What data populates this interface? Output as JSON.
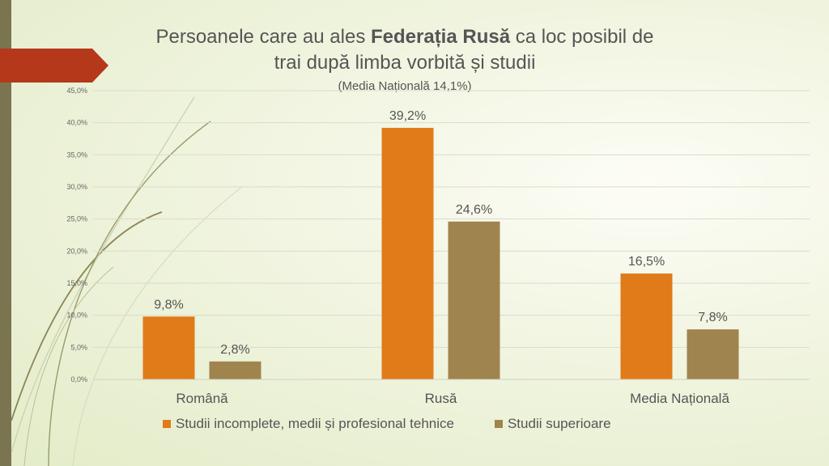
{
  "title": {
    "prefix": "Persoanele care au ales ",
    "bold": "Federația Rusă",
    "suffix": " ca loc posibil de",
    "line2": "trai după limba vorbită și studii",
    "line3": "(Media Națională 14,1%)"
  },
  "colors": {
    "series1": "#e07b1a",
    "series2": "#a0844e",
    "banner": "#b5381b",
    "strip": "#7a7550",
    "text": "#555555",
    "grid": "#d9dccb"
  },
  "chart_data": {
    "type": "bar",
    "categories": [
      "Română",
      "Rusă",
      "Media Națională"
    ],
    "series": [
      {
        "name": "Studii incomplete, medii și profesional tehnice",
        "values": [
          9.8,
          39.2,
          16.5
        ],
        "labels": [
          "9,8%",
          "39,2%",
          "16,5%"
        ]
      },
      {
        "name": "Studii superioare",
        "values": [
          2.8,
          24.6,
          7.8
        ],
        "labels": [
          "2,8%",
          "24,6%",
          "7,8%"
        ]
      }
    ],
    "ylim": [
      0,
      45
    ],
    "y_ticks": [
      "0,0%",
      "5,0%",
      "10,0%",
      "15,0%",
      "20,0%",
      "25,0%",
      "30,0%",
      "35,0%",
      "40,0%",
      "45,0%"
    ],
    "grid": true,
    "legend_position": "bottom"
  }
}
